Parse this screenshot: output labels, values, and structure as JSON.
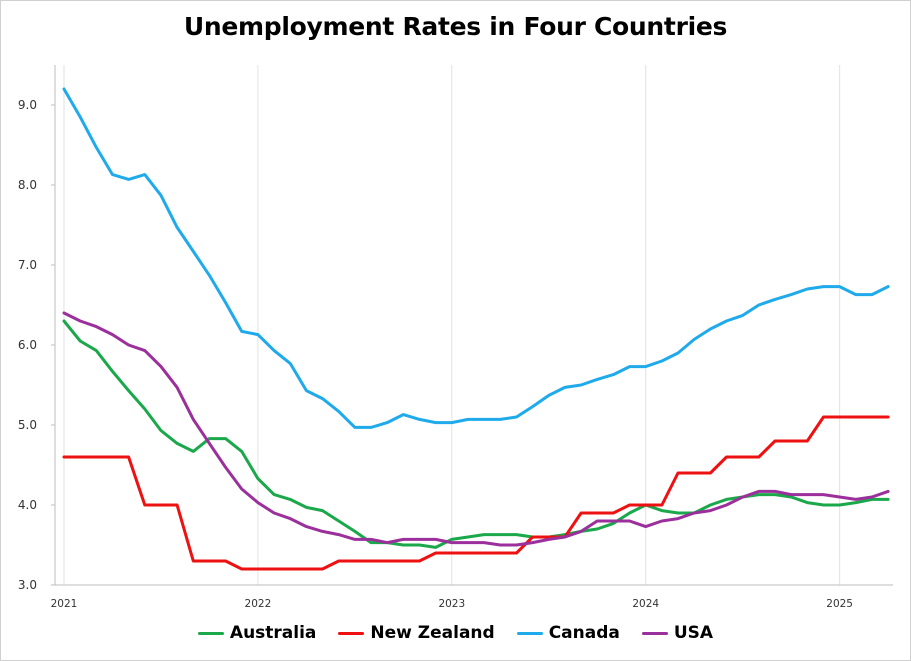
{
  "chart_data": {
    "type": "line",
    "title": "Unemployment Rates in Four Countries",
    "xlabel": "",
    "ylabel": "",
    "ylim": [
      3.0,
      9.5
    ],
    "xlim": [
      "2021-01",
      "2025-05"
    ],
    "y_ticks": [
      "3.0",
      "4.0",
      "5.0",
      "6.0",
      "7.0",
      "8.0",
      "9.0"
    ],
    "x_ticks": [
      "2021",
      "2022",
      "2023",
      "2024",
      "2025"
    ],
    "grid": "vertical",
    "legend_position": "bottom",
    "series": [
      {
        "name": "Australia",
        "color": "#1aa84a",
        "points": [
          [
            "2021-01",
            6.3
          ],
          [
            "2021-02",
            6.05
          ],
          [
            "2021-03",
            5.93
          ],
          [
            "2021-04",
            5.67
          ],
          [
            "2021-05",
            5.43
          ],
          [
            "2021-06",
            5.2
          ],
          [
            "2021-07",
            4.93
          ],
          [
            "2021-08",
            4.77
          ],
          [
            "2021-09",
            4.67
          ],
          [
            "2021-10",
            4.83
          ],
          [
            "2021-11",
            4.83
          ],
          [
            "2021-12",
            4.67
          ],
          [
            "2022-01",
            4.33
          ],
          [
            "2022-02",
            4.13
          ],
          [
            "2022-03",
            4.07
          ],
          [
            "2022-04",
            3.97
          ],
          [
            "2022-05",
            3.93
          ],
          [
            "2022-06",
            3.8
          ],
          [
            "2022-07",
            3.67
          ],
          [
            "2022-08",
            3.53
          ],
          [
            "2022-09",
            3.53
          ],
          [
            "2022-10",
            3.5
          ],
          [
            "2022-11",
            3.5
          ],
          [
            "2022-12",
            3.47
          ],
          [
            "2023-01",
            3.57
          ],
          [
            "2023-02",
            3.6
          ],
          [
            "2023-03",
            3.63
          ],
          [
            "2023-04",
            3.63
          ],
          [
            "2023-05",
            3.63
          ],
          [
            "2023-06",
            3.6
          ],
          [
            "2023-07",
            3.6
          ],
          [
            "2023-08",
            3.63
          ],
          [
            "2023-09",
            3.67
          ],
          [
            "2023-10",
            3.7
          ],
          [
            "2023-11",
            3.77
          ],
          [
            "2023-12",
            3.9
          ],
          [
            "2024-01",
            4.0
          ],
          [
            "2024-02",
            3.93
          ],
          [
            "2024-03",
            3.9
          ],
          [
            "2024-04",
            3.9
          ],
          [
            "2024-05",
            4.0
          ],
          [
            "2024-06",
            4.07
          ],
          [
            "2024-07",
            4.1
          ],
          [
            "2024-08",
            4.13
          ],
          [
            "2024-09",
            4.13
          ],
          [
            "2024-10",
            4.1
          ],
          [
            "2024-11",
            4.03
          ],
          [
            "2024-12",
            4.0
          ],
          [
            "2025-01",
            4.0
          ],
          [
            "2025-02",
            4.03
          ],
          [
            "2025-03",
            4.07
          ],
          [
            "2025-04",
            4.07
          ]
        ]
      },
      {
        "name": "New Zealand",
        "color": "#ee1111",
        "points": [
          [
            "2021-01",
            4.6
          ],
          [
            "2021-02",
            4.6
          ],
          [
            "2021-03",
            4.6
          ],
          [
            "2021-04",
            4.6
          ],
          [
            "2021-05",
            4.6
          ],
          [
            "2021-06",
            4.0
          ],
          [
            "2021-07",
            4.0
          ],
          [
            "2021-08",
            4.0
          ],
          [
            "2021-09",
            3.3
          ],
          [
            "2021-10",
            3.3
          ],
          [
            "2021-11",
            3.3
          ],
          [
            "2021-12",
            3.2
          ],
          [
            "2022-01",
            3.2
          ],
          [
            "2022-02",
            3.2
          ],
          [
            "2022-03",
            3.2
          ],
          [
            "2022-04",
            3.2
          ],
          [
            "2022-05",
            3.2
          ],
          [
            "2022-06",
            3.3
          ],
          [
            "2022-07",
            3.3
          ],
          [
            "2022-08",
            3.3
          ],
          [
            "2022-09",
            3.3
          ],
          [
            "2022-10",
            3.3
          ],
          [
            "2022-11",
            3.3
          ],
          [
            "2022-12",
            3.4
          ],
          [
            "2023-01",
            3.4
          ],
          [
            "2023-02",
            3.4
          ],
          [
            "2023-03",
            3.4
          ],
          [
            "2023-04",
            3.4
          ],
          [
            "2023-05",
            3.4
          ],
          [
            "2023-06",
            3.6
          ],
          [
            "2023-07",
            3.6
          ],
          [
            "2023-08",
            3.6
          ],
          [
            "2023-09",
            3.9
          ],
          [
            "2023-10",
            3.9
          ],
          [
            "2023-11",
            3.9
          ],
          [
            "2023-12",
            4.0
          ],
          [
            "2024-01",
            4.0
          ],
          [
            "2024-02",
            4.0
          ],
          [
            "2024-03",
            4.4
          ],
          [
            "2024-04",
            4.4
          ],
          [
            "2024-05",
            4.4
          ],
          [
            "2024-06",
            4.6
          ],
          [
            "2024-07",
            4.6
          ],
          [
            "2024-08",
            4.6
          ],
          [
            "2024-09",
            4.8
          ],
          [
            "2024-10",
            4.8
          ],
          [
            "2024-11",
            4.8
          ],
          [
            "2024-12",
            5.1
          ],
          [
            "2025-01",
            5.1
          ],
          [
            "2025-02",
            5.1
          ],
          [
            "2025-03",
            5.1
          ],
          [
            "2025-04",
            5.1
          ]
        ]
      },
      {
        "name": "Canada",
        "color": "#1eaaeb",
        "points": [
          [
            "2021-01",
            9.2
          ],
          [
            "2021-02",
            8.85
          ],
          [
            "2021-03",
            8.47
          ],
          [
            "2021-04",
            8.13
          ],
          [
            "2021-05",
            8.07
          ],
          [
            "2021-06",
            8.13
          ],
          [
            "2021-07",
            7.87
          ],
          [
            "2021-08",
            7.47
          ],
          [
            "2021-09",
            7.17
          ],
          [
            "2021-10",
            6.87
          ],
          [
            "2021-11",
            6.53
          ],
          [
            "2021-12",
            6.17
          ],
          [
            "2022-01",
            6.13
          ],
          [
            "2022-02",
            5.93
          ],
          [
            "2022-03",
            5.77
          ],
          [
            "2022-04",
            5.43
          ],
          [
            "2022-05",
            5.33
          ],
          [
            "2022-06",
            5.17
          ],
          [
            "2022-07",
            4.97
          ],
          [
            "2022-08",
            4.97
          ],
          [
            "2022-09",
            5.03
          ],
          [
            "2022-10",
            5.13
          ],
          [
            "2022-11",
            5.07
          ],
          [
            "2022-12",
            5.03
          ],
          [
            "2023-01",
            5.03
          ],
          [
            "2023-02",
            5.07
          ],
          [
            "2023-03",
            5.07
          ],
          [
            "2023-04",
            5.07
          ],
          [
            "2023-05",
            5.1
          ],
          [
            "2023-06",
            5.23
          ],
          [
            "2023-07",
            5.37
          ],
          [
            "2023-08",
            5.47
          ],
          [
            "2023-09",
            5.5
          ],
          [
            "2023-10",
            5.57
          ],
          [
            "2023-11",
            5.63
          ],
          [
            "2023-12",
            5.73
          ],
          [
            "2024-01",
            5.73
          ],
          [
            "2024-02",
            5.8
          ],
          [
            "2024-03",
            5.9
          ],
          [
            "2024-04",
            6.07
          ],
          [
            "2024-05",
            6.2
          ],
          [
            "2024-06",
            6.3
          ],
          [
            "2024-07",
            6.37
          ],
          [
            "2024-08",
            6.5
          ],
          [
            "2024-09",
            6.57
          ],
          [
            "2024-10",
            6.63
          ],
          [
            "2024-11",
            6.7
          ],
          [
            "2024-12",
            6.73
          ],
          [
            "2025-01",
            6.73
          ],
          [
            "2025-02",
            6.63
          ],
          [
            "2025-03",
            6.63
          ],
          [
            "2025-04",
            6.73
          ]
        ]
      },
      {
        "name": "USA",
        "color": "#9b2f9b",
        "points": [
          [
            "2021-01",
            6.4
          ],
          [
            "2021-02",
            6.3
          ],
          [
            "2021-03",
            6.23
          ],
          [
            "2021-04",
            6.13
          ],
          [
            "2021-05",
            6.0
          ],
          [
            "2021-06",
            5.93
          ],
          [
            "2021-07",
            5.73
          ],
          [
            "2021-08",
            5.47
          ],
          [
            "2021-09",
            5.07
          ],
          [
            "2021-10",
            4.77
          ],
          [
            "2021-11",
            4.47
          ],
          [
            "2021-12",
            4.2
          ],
          [
            "2022-01",
            4.03
          ],
          [
            "2022-02",
            3.9
          ],
          [
            "2022-03",
            3.83
          ],
          [
            "2022-04",
            3.73
          ],
          [
            "2022-05",
            3.67
          ],
          [
            "2022-06",
            3.63
          ],
          [
            "2022-07",
            3.57
          ],
          [
            "2022-08",
            3.57
          ],
          [
            "2022-09",
            3.53
          ],
          [
            "2022-10",
            3.57
          ],
          [
            "2022-11",
            3.57
          ],
          [
            "2022-12",
            3.57
          ],
          [
            "2023-01",
            3.53
          ],
          [
            "2023-02",
            3.53
          ],
          [
            "2023-03",
            3.53
          ],
          [
            "2023-04",
            3.5
          ],
          [
            "2023-05",
            3.5
          ],
          [
            "2023-06",
            3.53
          ],
          [
            "2023-07",
            3.57
          ],
          [
            "2023-08",
            3.6
          ],
          [
            "2023-09",
            3.67
          ],
          [
            "2023-10",
            3.8
          ],
          [
            "2023-11",
            3.8
          ],
          [
            "2023-12",
            3.8
          ],
          [
            "2024-01",
            3.73
          ],
          [
            "2024-02",
            3.8
          ],
          [
            "2024-03",
            3.83
          ],
          [
            "2024-04",
            3.9
          ],
          [
            "2024-05",
            3.93
          ],
          [
            "2024-06",
            4.0
          ],
          [
            "2024-07",
            4.1
          ],
          [
            "2024-08",
            4.17
          ],
          [
            "2024-09",
            4.17
          ],
          [
            "2024-10",
            4.13
          ],
          [
            "2024-11",
            4.13
          ],
          [
            "2024-12",
            4.13
          ],
          [
            "2025-01",
            4.1
          ],
          [
            "2025-02",
            4.07
          ],
          [
            "2025-03",
            4.1
          ],
          [
            "2025-04",
            4.17
          ]
        ]
      }
    ]
  }
}
